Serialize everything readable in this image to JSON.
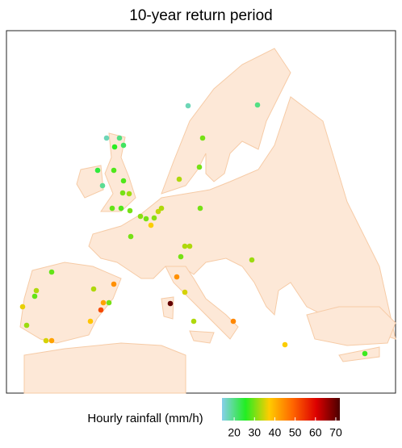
{
  "chart_data": {
    "type": "point-map",
    "title": "10-year return period",
    "colorbar_label": "Hourly rainfall (mm/h)",
    "clim": [
      14,
      72
    ],
    "cticks": [
      20,
      30,
      40,
      50,
      60,
      70
    ],
    "colormap": [
      "#87ceeb",
      "#22ee22",
      "#ffcc00",
      "#ff6600",
      "#dd0000",
      "#4a0000"
    ],
    "land_color": "#fde8d7",
    "values": [
      17,
      20,
      17,
      20,
      26,
      22,
      30,
      24,
      28,
      30,
      33,
      19,
      28,
      30,
      32,
      29,
      28,
      30,
      31,
      30,
      31,
      34,
      33,
      37,
      30,
      30,
      33,
      33,
      30,
      32,
      29,
      44,
      44,
      33,
      29,
      33,
      35,
      36,
      30,
      42,
      52,
      70,
      38,
      32,
      33,
      45,
      35,
      42,
      37,
      27
    ]
  }
}
